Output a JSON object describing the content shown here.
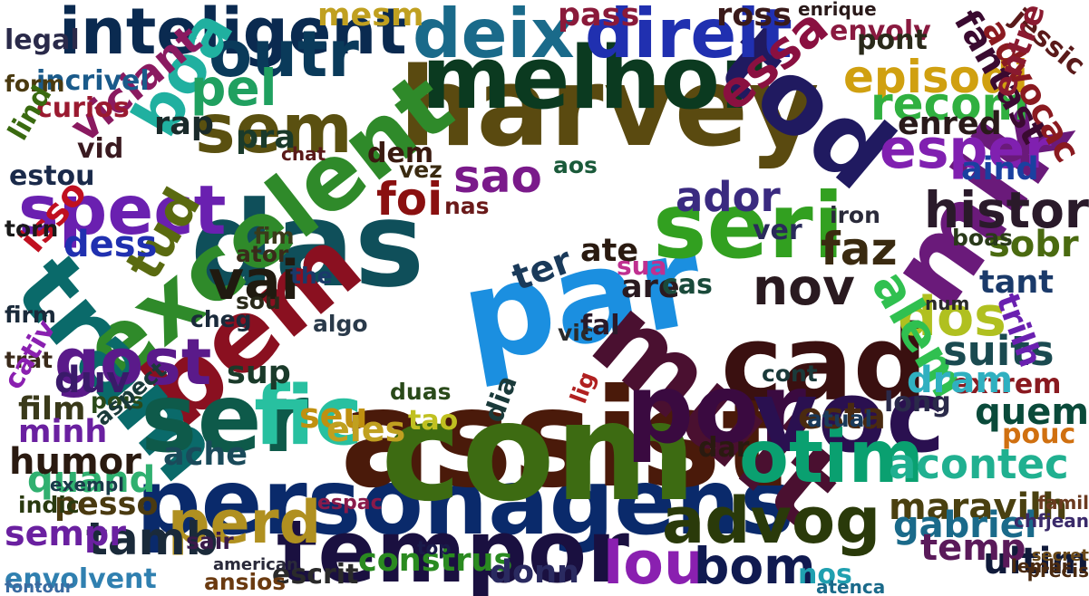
{
  "words": [
    {
      "text": "personagens",
      "color": "#0a2a6b"
    },
    {
      "text": "assist",
      "color": "#4a1a0a"
    },
    {
      "text": "com",
      "color": "#3d6b12"
    },
    {
      "text": "harvey",
      "color": "#5a4a10"
    },
    {
      "text": "das",
      "color": "#0f4f5a"
    },
    {
      "text": "par",
      "color": "#1b8fe0"
    },
    {
      "text": "muit",
      "color": "#4a1030"
    },
    {
      "text": "melhor",
      "color": "#0b3a20"
    },
    {
      "text": "seri",
      "color": "#32a020"
    },
    {
      "text": "mik",
      "color": "#6a1a7a"
    },
    {
      "text": "cad",
      "color": "#3a1010"
    },
    {
      "text": "excelent",
      "color": "#2f8a2a"
    },
    {
      "text": "bem",
      "color": "#8a1020"
    },
    {
      "text": "tram",
      "color": "#0a6a6a"
    },
    {
      "text": "ser",
      "color": "#0e5a4a"
    },
    {
      "text": "tempor",
      "color": "#1a1040"
    },
    {
      "text": "por",
      "color": "#3a0a40"
    },
    {
      "text": "voc",
      "color": "#2a1050"
    },
    {
      "text": "otim",
      "color": "#0aa070"
    },
    {
      "text": "fic",
      "color": "#28c0a0"
    },
    {
      "text": "tod",
      "color": "#201a60"
    },
    {
      "text": "inteligent",
      "color": "#0a2a50"
    },
    {
      "text": "outr",
      "color": "#0a3a5a"
    },
    {
      "text": "deix",
      "color": "#1a6a8a"
    },
    {
      "text": "direit",
      "color": "#2030b0"
    },
    {
      "text": "sem",
      "color": "#5a5010"
    },
    {
      "text": "boa",
      "color": "#20b0a0"
    },
    {
      "text": "spect",
      "color": "#6a20b0"
    },
    {
      "text": "advog",
      "color": "#2a3a0a"
    },
    {
      "text": "perd",
      "color": "#b09020"
    },
    {
      "text": "lou",
      "color": "#8a20b0"
    },
    {
      "text": "bom",
      "color": "#101a50"
    },
    {
      "text": "gost",
      "color": "#5a1a8a"
    },
    {
      "text": "tamb",
      "color": "#1a2a3a"
    },
    {
      "text": "histor",
      "color": "#2a1a2a"
    },
    {
      "text": "esper",
      "color": "#8020b0"
    },
    {
      "text": "sao",
      "color": "#7a1a8a"
    },
    {
      "text": "ador",
      "color": "#3a2a80"
    },
    {
      "text": "foi",
      "color": "#8a1010"
    },
    {
      "text": "pel",
      "color": "#20a060"
    },
    {
      "text": "essa",
      "color": "#8a1040"
    },
    {
      "text": "episodi",
      "color": "#d0a010"
    },
    {
      "text": "recom",
      "color": "#30b040"
    },
    {
      "text": "dos",
      "color": "#b0c020"
    },
    {
      "text": "alem",
      "color": "#30c050"
    },
    {
      "text": "vai",
      "color": "#201a10"
    },
    {
      "text": "tud",
      "color": "#5a6a10"
    },
    {
      "text": "nov",
      "color": "#2a1a20"
    },
    {
      "text": "faz",
      "color": "#3a2a10"
    },
    {
      "text": "suits",
      "color": "#1a4a50"
    },
    {
      "text": "quem",
      "color": "#0a4a3a"
    },
    {
      "text": "acontec",
      "color": "#20b090"
    },
    {
      "text": "maravilh",
      "color": "#4a4010"
    },
    {
      "text": "gabriel",
      "color": "#1a6a8a"
    },
    {
      "text": "quand",
      "color": "#30b070"
    },
    {
      "text": "humor",
      "color": "#2a1a10"
    },
    {
      "text": "esta",
      "color": "#4a2a10"
    },
    {
      "text": "construs",
      "color": "#2a8a20"
    },
    {
      "text": "donn",
      "color": "#2a2a60"
    },
    {
      "text": "escrit",
      "color": "#2a2a2a"
    },
    {
      "text": "envolvent",
      "color": "#3080b0"
    },
    {
      "text": "sempr",
      "color": "#6a20a0"
    },
    {
      "text": "pesso",
      "color": "#4a3a10"
    },
    {
      "text": "ultim",
      "color": "#101a3a"
    },
    {
      "text": "temp",
      "color": "#5a1a5a"
    },
    {
      "text": "pouc",
      "color": "#d07010"
    },
    {
      "text": "viciant",
      "color": "#8a1a60"
    },
    {
      "text": "incrivel",
      "color": "#1a5a8a"
    },
    {
      "text": "curios",
      "color": "#9a1a30"
    },
    {
      "text": "envolv",
      "color": "#8a1a40"
    },
    {
      "text": "fantast",
      "color": "#3a0a30"
    },
    {
      "text": "advocac",
      "color": "#8a1a20"
    },
    {
      "text": "jessic",
      "color": "#5a1a1a"
    },
    {
      "text": "enred",
      "color": "#2a1a1a"
    },
    {
      "text": "entre",
      "color": "#8a1a30"
    },
    {
      "text": "aind",
      "color": "#1a40a0"
    },
    {
      "text": "sobr",
      "color": "#4a6a10"
    },
    {
      "text": "tant",
      "color": "#1a3a6a"
    },
    {
      "text": "trilh",
      "color": "#6a20b0"
    },
    {
      "text": "extrem",
      "color": "#8a1a20"
    },
    {
      "text": "dram",
      "color": "#30b0c0"
    },
    {
      "text": "long",
      "color": "#2a2a4a"
    },
    {
      "text": "isso",
      "color": "#c01020"
    },
    {
      "text": "dess",
      "color": "#2030b0"
    },
    {
      "text": "duv",
      "color": "#3a1a6a"
    },
    {
      "text": "film",
      "color": "#3a3a1a"
    },
    {
      "text": "minh",
      "color": "#6a20a0"
    },
    {
      "text": "ache",
      "color": "#1a4a5a"
    },
    {
      "text": "sup",
      "color": "#1a3a2a"
    },
    {
      "text": "seu",
      "color": "#c09010"
    },
    {
      "text": "eles",
      "color": "#c0a020"
    },
    {
      "text": "tao",
      "color": "#c0c020"
    },
    {
      "text": "ter",
      "color": "#1a3a5a"
    },
    {
      "text": "ate",
      "color": "#2a1a10"
    },
    {
      "text": "are",
      "color": "#2a1a20"
    },
    {
      "text": "cas",
      "color": "#1a4a3a"
    },
    {
      "text": "sua",
      "color": "#c03090"
    },
    {
      "text": "dar",
      "color": "#2a1a10"
    },
    {
      "text": "nos",
      "color": "#20a0b0"
    },
    {
      "text": "dem",
      "color": "#3a1a10"
    },
    {
      "text": "pra",
      "color": "#1a3a2a"
    },
    {
      "text": "rap",
      "color": "#1a2a2a"
    },
    {
      "text": "vid",
      "color": "#3a1a20"
    },
    {
      "text": "estou",
      "color": "#1a2a4a"
    },
    {
      "text": "ver",
      "color": "#2a2a5a"
    },
    {
      "text": "vez",
      "color": "#3a2a10"
    },
    {
      "text": "aos",
      "color": "#1a5a3a"
    },
    {
      "text": "nas",
      "color": "#6a1a1a"
    },
    {
      "text": "cheg",
      "color": "#1a2a3a"
    },
    {
      "text": "sou",
      "color": "#2a2a1a"
    },
    {
      "text": "algo",
      "color": "#2a3a4a"
    },
    {
      "text": "dia",
      "color": "#1a3a3a"
    },
    {
      "text": "cont",
      "color": "#1a3a3a"
    },
    {
      "text": "atual",
      "color": "#1a3a5a"
    },
    {
      "text": "iron",
      "color": "#2a2a3a"
    },
    {
      "text": "boas",
      "color": "#2a3a1a"
    },
    {
      "text": "fim",
      "color": "#3a3a1a"
    },
    {
      "text": "ator",
      "color": "#3a2a1a"
    },
    {
      "text": "the",
      "color": "#1a3a6a"
    },
    {
      "text": "mesm",
      "color": "#c0a020"
    },
    {
      "text": "pass",
      "color": "#8a1a3a"
    },
    {
      "text": "ross",
      "color": "#3a1a1a"
    },
    {
      "text": "pont",
      "color": "#2a2a1a"
    },
    {
      "text": "legal",
      "color": "#2a2a4a"
    },
    {
      "text": "form",
      "color": "#4a3a10"
    },
    {
      "text": "torn",
      "color": "#1a1a1a"
    },
    {
      "text": "trat",
      "color": "#3a2a1a"
    },
    {
      "text": "firm",
      "color": "#1a2a3a"
    },
    {
      "text": "cativ",
      "color": "#8a20b0"
    },
    {
      "text": "indic",
      "color": "#2a3a10"
    },
    {
      "text": "exempl",
      "color": "#1a3a4a"
    },
    {
      "text": "pois",
      "color": "#2a4a1a"
    },
    {
      "text": "aspect",
      "color": "#1a3a3a"
    },
    {
      "text": "lind",
      "color": "#3a6a10"
    },
    {
      "text": "sair",
      "color": "#3a1a4a"
    },
    {
      "text": "ansios",
      "color": "#6a3a10"
    },
    {
      "text": "american",
      "color": "#2a2a3a"
    },
    {
      "text": "duas",
      "color": "#2a4a1a"
    },
    {
      "text": "fal",
      "color": "#2a1a2a"
    },
    {
      "text": "vic",
      "color": "#2a2a2a"
    },
    {
      "text": "lig",
      "color": "#b02020"
    },
    {
      "text": "espac",
      "color": "#8a1a4a"
    },
    {
      "text": "top",
      "color": "#1a1a4a"
    },
    {
      "text": "chat",
      "color": "#5a1a1a"
    },
    {
      "text": "num",
      "color": "#2a2a2a"
    },
    {
      "text": "fontour",
      "color": "#3a6aa0"
    },
    {
      "text": "famil",
      "color": "#6a3a20"
    },
    {
      "text": "chfjean",
      "color": "#3a2a6a"
    },
    {
      "text": "precis",
      "color": "#4a2a10"
    },
    {
      "text": "secret",
      "color": "#6a4a1a"
    },
    {
      "text": "lembr",
      "color": "#4a2a10"
    },
    {
      "text": "atenca",
      "color": "#1a6a8a"
    },
    {
      "text": "enrique",
      "color": "#2a1a1a"
    }
  ]
}
